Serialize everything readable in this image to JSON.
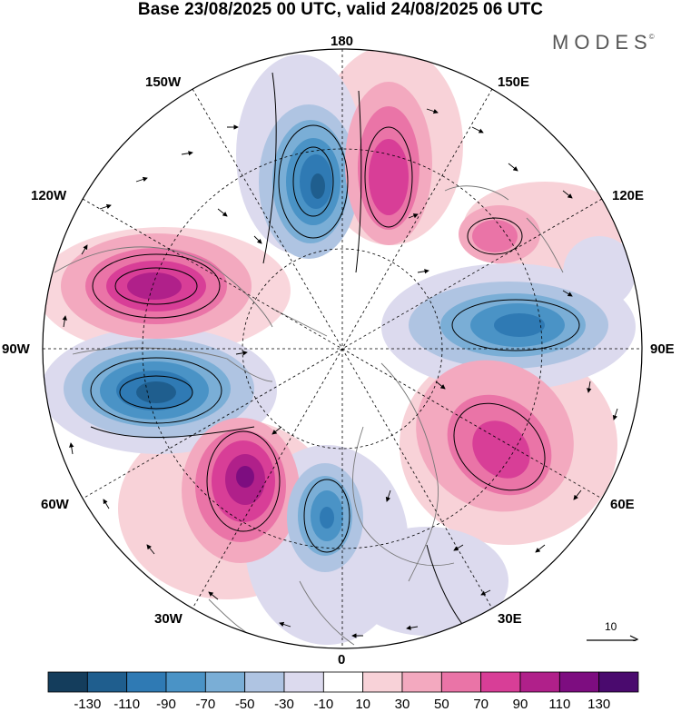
{
  "title": "Base 23/08/2025 00 UTC, valid 24/08/2025 06 UTC",
  "brand": "MODES",
  "brand_mark": "©",
  "longitude_labels": {
    "top": "180",
    "upper_left": "150W",
    "upper_right": "150E",
    "mid_upper_left": "120W",
    "mid_upper_right": "120E",
    "left": "90W",
    "right": "90E",
    "mid_lower_left": "60W",
    "mid_lower_right": "60E",
    "lower_left": "30W",
    "lower_right": "30E",
    "bottom": "0"
  },
  "reference_vector": "10",
  "colorbar": {
    "levels": [
      "-130",
      "-110",
      "-90",
      "-70",
      "-50",
      "-30",
      "-10",
      "10",
      "30",
      "50",
      "70",
      "90",
      "110",
      "130"
    ],
    "colors": [
      "#143d5c",
      "#1f5e8e",
      "#2f7ab4",
      "#4a93c6",
      "#7aaed6",
      "#afc4e2",
      "#dcdaee",
      "#ffffff",
      "#f8d2d8",
      "#f3a9bf",
      "#ea74a7",
      "#d83e97",
      "#b0208a",
      "#7d0d80",
      "#4a0a6e"
    ]
  },
  "anomaly_centers": [
    {
      "name": "trough-north-pacific",
      "sign": "negative",
      "lon": "180"
    },
    {
      "name": "ridge-east-siberia",
      "sign": "positive",
      "lon": "160E"
    },
    {
      "name": "ridge-north-america",
      "sign": "positive",
      "lon": "120W"
    },
    {
      "name": "trough-hudson-bay",
      "sign": "negative",
      "lon": "90W"
    },
    {
      "name": "ridge-north-atlantic",
      "sign": "positive",
      "lon": "50W"
    },
    {
      "name": "trough-western-europe",
      "sign": "negative",
      "lon": "10W"
    },
    {
      "name": "ridge-western-siberia",
      "sign": "positive",
      "lon": "60E"
    },
    {
      "name": "trough-central-siberia",
      "sign": "negative",
      "lon": "100E"
    },
    {
      "name": "ridge-far-east",
      "sign": "positive",
      "lon": "125E"
    }
  ]
}
